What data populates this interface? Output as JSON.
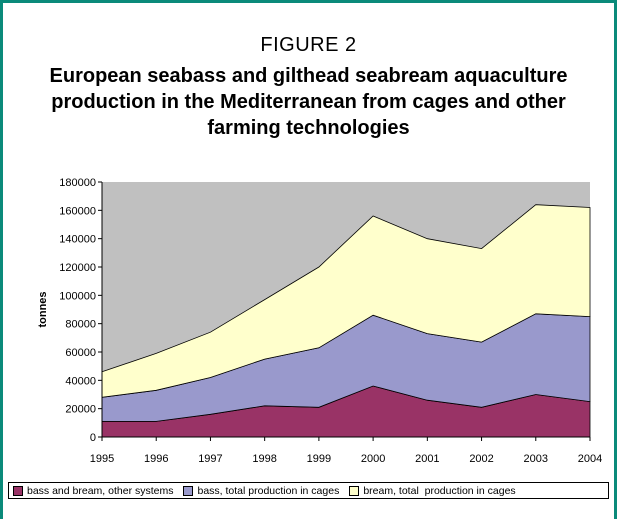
{
  "figure_label": "FIGURE 2",
  "title": "European seabass and gilthead seabream aquaculture production in the Mediterranean from cages and other farming technologies",
  "chart_data": {
    "type": "area",
    "stacked": true,
    "x": [
      "1995",
      "1996",
      "1997",
      "1998",
      "1999",
      "2000",
      "2001",
      "2002",
      "2003",
      "2004"
    ],
    "series": [
      {
        "name": "bass and bream, other systems",
        "color": "#993366",
        "values": [
          11000,
          11000,
          16000,
          22000,
          21000,
          36000,
          26000,
          21000,
          30000,
          25000
        ]
      },
      {
        "name": "bass, total production in cages",
        "color": "#9999cc",
        "values": [
          17000,
          22000,
          26000,
          33000,
          42000,
          50000,
          47000,
          46000,
          57000,
          60000
        ]
      },
      {
        "name": "bream, total  production in cages",
        "color": "#ffffcc",
        "values": [
          18000,
          26000,
          32000,
          42000,
          57000,
          70000,
          67000,
          66000,
          77000,
          77000
        ]
      }
    ],
    "ylabel": "tonnes",
    "xlabel": "",
    "ylim": [
      0,
      180000
    ],
    "yticks": [
      0,
      20000,
      40000,
      60000,
      80000,
      100000,
      120000,
      140000,
      160000,
      180000
    ],
    "grid": false,
    "plot_background": "#c0c0c0",
    "legend_position": "bottom"
  }
}
